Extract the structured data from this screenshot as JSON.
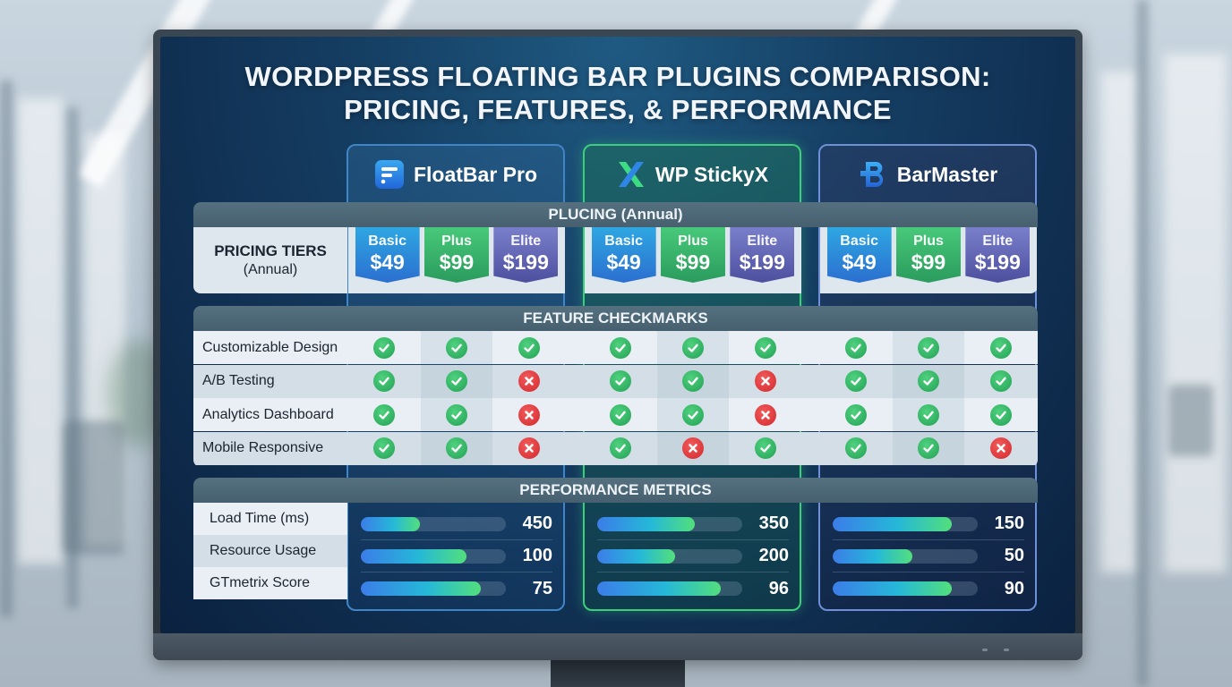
{
  "title": {
    "line1": "WORDPRESS FLOATING BAR PLUGINS COMPARISON:",
    "line2": "PRICING, FEATURES, & PERFORMANCE"
  },
  "plugins": [
    {
      "name": "FloatBar Pro",
      "icon": "floatbar-logo-icon",
      "accent": "#3f86c8"
    },
    {
      "name": "WP StickyX",
      "icon": "stickyx-logo-icon",
      "accent": "#3ccf7a"
    },
    {
      "name": "BarMaster",
      "icon": "barmaster-logo-icon",
      "accent": "#6f8fd6"
    }
  ],
  "pricing": {
    "section_title": "PLUCING (Annual)",
    "row_label": "PRICING TIERS",
    "row_sublabel": "(Annual)",
    "tiers": [
      [
        {
          "name": "Basic",
          "price": "$49"
        },
        {
          "name": "Plus",
          "price": "$99"
        },
        {
          "name": "Elite",
          "price": "$199"
        }
      ],
      [
        {
          "name": "Basic",
          "price": "$49"
        },
        {
          "name": "Plus",
          "price": "$99"
        },
        {
          "name": "Elite",
          "price": "$199"
        }
      ],
      [
        {
          "name": "Basic",
          "price": "$49"
        },
        {
          "name": "Plus",
          "price": "$99"
        },
        {
          "name": "Elite",
          "price": "$199"
        }
      ]
    ],
    "colors": {
      "basic": "#2b8fdc",
      "plus": "#35b46b",
      "elite": "#6065b5"
    }
  },
  "features": {
    "section_title": "FEATURE CHECKMARKS",
    "rows": [
      {
        "label": "Customizable Design",
        "values": [
          [
            true,
            true,
            true
          ],
          [
            true,
            true,
            true
          ],
          [
            true,
            true,
            true
          ]
        ]
      },
      {
        "label": "A/B Testing",
        "values": [
          [
            true,
            true,
            false
          ],
          [
            true,
            true,
            false
          ],
          [
            true,
            true,
            true
          ]
        ]
      },
      {
        "label": "Analytics Dashboard",
        "values": [
          [
            true,
            true,
            false
          ],
          [
            true,
            true,
            false
          ],
          [
            true,
            true,
            true
          ]
        ]
      },
      {
        "label": "Mobile Responsive",
        "values": [
          [
            true,
            true,
            false
          ],
          [
            true,
            false,
            true
          ],
          [
            true,
            true,
            false
          ]
        ]
      }
    ],
    "colors": {
      "check": "#2fb35f",
      "cross": "#e03a3e"
    }
  },
  "performance": {
    "section_title": "PERFORMANCE METRICS",
    "rows": [
      {
        "label": "Load Time (ms)",
        "values": [
          "450",
          "350",
          "150"
        ],
        "fill_pct": [
          41,
          67,
          82
        ]
      },
      {
        "label": "Resource Usage",
        "values": [
          "100",
          "200",
          "50"
        ],
        "fill_pct": [
          73,
          54,
          55
        ]
      },
      {
        "label": "GTmetrix Score",
        "values": [
          "75",
          "96",
          "90"
        ],
        "fill_pct": [
          83,
          85,
          82
        ]
      }
    ]
  }
}
